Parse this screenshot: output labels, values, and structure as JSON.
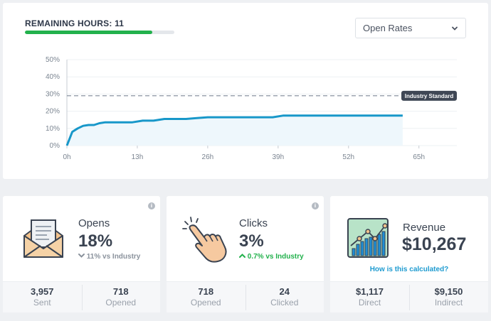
{
  "header": {
    "remaining_label": "REMAINING HOURS: 11",
    "progress_fraction": 0.85,
    "progress_color": "#22b14c",
    "metric_select": {
      "value": "Open Rates",
      "icon": "chevron-down-icon"
    }
  },
  "chart_data": {
    "type": "area",
    "x_ticks": [
      "0h",
      "13h",
      "26h",
      "39h",
      "52h",
      "65h"
    ],
    "y_ticks": [
      "0%",
      "10%",
      "20%",
      "30%",
      "40%",
      "50%"
    ],
    "xlim": [
      0,
      72
    ],
    "ylim": [
      0,
      50
    ],
    "grid": true,
    "series": [
      {
        "color": "#1797c9",
        "x": [
          0,
          0.5,
          1,
          1.5,
          2,
          3,
          4,
          5,
          6,
          7,
          8,
          10,
          12,
          14,
          16,
          18,
          20,
          22,
          24,
          26,
          30,
          34,
          36,
          38,
          40,
          44,
          48,
          52,
          56,
          60,
          62
        ],
        "y": [
          0,
          4,
          8,
          9,
          10,
          11.5,
          12,
          12,
          13,
          13.5,
          13.5,
          13.5,
          13.5,
          14.5,
          14.5,
          15.5,
          15.5,
          15.5,
          16,
          16.5,
          16.5,
          16.5,
          16.5,
          16.5,
          17.5,
          17.5,
          17.5,
          17.5,
          17.5,
          17.5,
          17.5
        ]
      }
    ],
    "reference_line": {
      "label": "Industry Standard",
      "value": 29,
      "color": "#7d8796"
    }
  },
  "cards": {
    "opens": {
      "title": "Opens",
      "value": "18%",
      "comparison": "11% vs Industry",
      "comparison_icon": "chevron-down-icon",
      "comparison_color": "#8a929c",
      "icon": "envelope-icon",
      "footer": [
        {
          "value": "3,957",
          "label": "Sent"
        },
        {
          "value": "718",
          "label": "Opened"
        }
      ]
    },
    "clicks": {
      "title": "Clicks",
      "value": "3%",
      "comparison": "0.7% vs Industry",
      "comparison_icon": "chevron-up-icon",
      "comparison_color": "#22b14c",
      "icon": "pointing-hand-icon",
      "footer": [
        {
          "value": "718",
          "label": "Opened"
        },
        {
          "value": "24",
          "label": "Clicked"
        }
      ]
    },
    "revenue": {
      "title": "Revenue",
      "value": "$10,267",
      "link": "How is this calculated?",
      "icon": "growth-chart-icon",
      "footer": [
        {
          "value": "$1,117",
          "label": "Direct"
        },
        {
          "value": "$9,150",
          "label": "Indirect"
        }
      ]
    }
  },
  "info_icon_glyph": "i"
}
